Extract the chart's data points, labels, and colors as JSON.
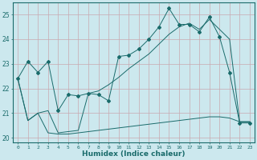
{
  "xlabel": "Humidex (Indice chaleur)",
  "ylabel": "",
  "background_color": "#cce8ee",
  "grid_color": "#b8d4d8",
  "line_color": "#1a6b6b",
  "xlim": [
    -0.5,
    23.5
  ],
  "ylim": [
    19.8,
    25.5
  ],
  "yticks": [
    20,
    21,
    22,
    23,
    24,
    25
  ],
  "xticks": [
    0,
    1,
    2,
    3,
    4,
    5,
    6,
    7,
    8,
    9,
    10,
    11,
    12,
    13,
    14,
    15,
    16,
    17,
    18,
    19,
    20,
    21,
    22,
    23
  ],
  "line1_y": [
    22.4,
    23.1,
    22.65,
    23.1,
    21.1,
    21.75,
    21.7,
    21.8,
    21.75,
    21.5,
    23.3,
    23.35,
    23.6,
    24.0,
    24.5,
    25.25,
    24.6,
    24.6,
    24.3,
    24.9,
    24.1,
    22.65,
    20.6,
    20.6
  ],
  "line2_y": [
    22.4,
    20.7,
    21.0,
    21.1,
    20.2,
    20.25,
    20.3,
    21.8,
    21.9,
    22.15,
    22.45,
    22.8,
    23.1,
    23.4,
    23.8,
    24.2,
    24.5,
    24.65,
    24.4,
    24.8,
    24.4,
    24.0,
    20.65,
    20.65
  ],
  "line3_y": [
    22.4,
    20.7,
    21.0,
    20.2,
    20.15,
    20.15,
    20.2,
    20.25,
    20.3,
    20.35,
    20.4,
    20.45,
    20.5,
    20.55,
    20.6,
    20.65,
    20.7,
    20.75,
    20.8,
    20.85,
    20.85,
    20.8,
    20.65,
    20.65
  ]
}
